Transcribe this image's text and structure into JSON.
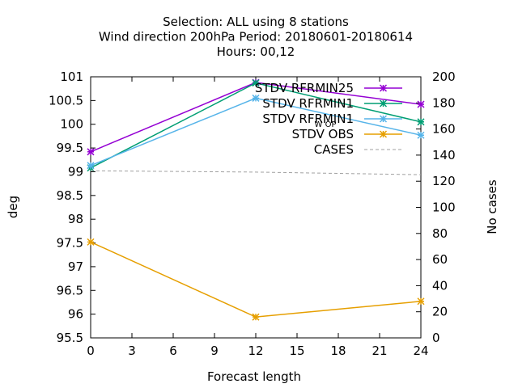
{
  "chart_data": {
    "type": "line",
    "title_lines": [
      "Selection: ALL using     8 stations",
      "Wind direction 200hPa   Period: 20180601-20180614",
      "Hours:  00,12"
    ],
    "xlabel": "Forecast length",
    "ylabel": "deg",
    "y2label": "No cases",
    "x_ticks": [
      0,
      3,
      6,
      9,
      12,
      15,
      18,
      21,
      24
    ],
    "y_ticks": [
      "95.5",
      "96",
      "96.5",
      "97",
      "97.5",
      "98",
      "98.5",
      "99",
      "99.5",
      "100",
      "100.5",
      "101"
    ],
    "y2_ticks": [
      "0",
      "20",
      "40",
      "60",
      "80",
      "100",
      "120",
      "140",
      "160",
      "180",
      "200"
    ],
    "xlim": [
      0,
      24
    ],
    "ylim": [
      95.5,
      101
    ],
    "y2lim": [
      0,
      200
    ],
    "legend_position": "top-right",
    "series": [
      {
        "name": "STDV RFRMIN25",
        "axis": "y1",
        "color": "#9400d3",
        "marker": "star",
        "x": [
          0,
          12,
          24
        ],
        "y": [
          99.42,
          100.88,
          100.42
        ]
      },
      {
        "name": "STDV RFRMIN1",
        "axis": "y1",
        "color": "#009e73",
        "marker": "star",
        "x": [
          0,
          12,
          24
        ],
        "y": [
          99.08,
          100.87,
          100.05
        ]
      },
      {
        "name": "STDV RFRMIN1",
        "legend_note": "W OP",
        "axis": "y1",
        "color": "#56b4e9",
        "marker": "star",
        "x": [
          0,
          12,
          24
        ],
        "y": [
          99.13,
          100.55,
          99.77
        ]
      },
      {
        "name": "STDV OBS",
        "axis": "y1",
        "color": "#e69f00",
        "marker": "star",
        "x": [
          0,
          12,
          24
        ],
        "y": [
          97.52,
          95.94,
          96.27
        ]
      },
      {
        "name": "CASES",
        "axis": "y2",
        "color": "#a0a0a0",
        "dashed": true,
        "x": [
          0,
          12,
          24
        ],
        "y": [
          128,
          127,
          125
        ]
      }
    ]
  }
}
